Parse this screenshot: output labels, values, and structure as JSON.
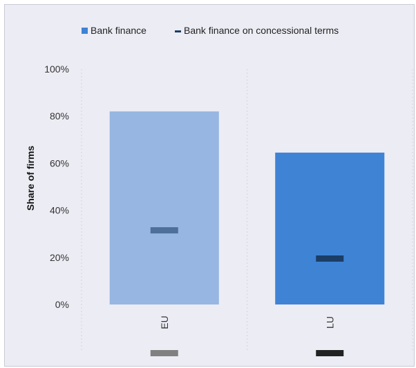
{
  "chart_data": {
    "type": "bar",
    "categories": [
      "EU",
      "LU"
    ],
    "series": [
      {
        "name": "Bank finance",
        "values": [
          82,
          64.5
        ],
        "colors": [
          "#97b6e1",
          "#3f83d5"
        ]
      },
      {
        "name": "Bank finance on concessional terms",
        "values": [
          31.5,
          19.5
        ],
        "colors": [
          "#4d6f99",
          "#1b3d66"
        ]
      }
    ],
    "bottom_swatches": [
      "#808080",
      "#222222"
    ],
    "title": "",
    "xlabel": "",
    "ylabel": "Share of firms",
    "ylim": [
      0,
      100
    ],
    "yticks": [
      0,
      20,
      40,
      60,
      80,
      100
    ],
    "ytick_labels": [
      "0%",
      "20%",
      "40%",
      "60%",
      "80%",
      "100%"
    ],
    "grid": true,
    "legend_position": "top",
    "legend_markers": [
      "#3f83d5",
      "#1b3d66"
    ]
  }
}
